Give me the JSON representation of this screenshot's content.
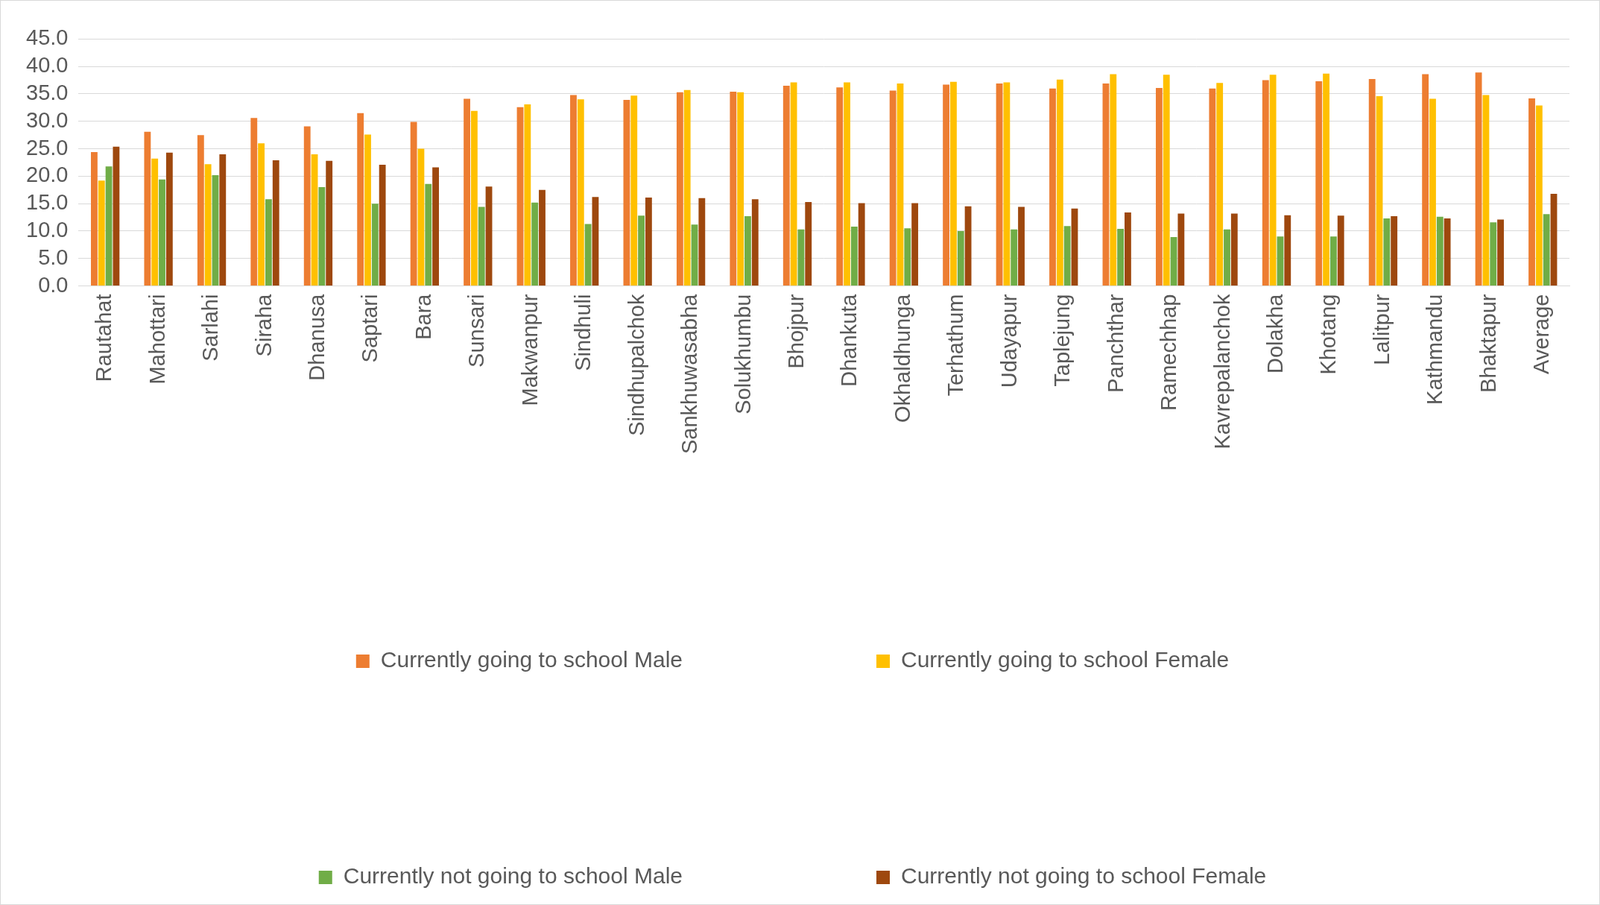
{
  "chart_data": {
    "type": "bar",
    "categories": [
      "Rautahat",
      "Mahottari",
      "Sarlahi",
      "Siraha",
      "Dhanusa",
      "Saptari",
      "Bara",
      "Sunsari",
      "Makwanpur",
      "Sindhuli",
      "Sindhupalchok",
      "Sankhuwasabha",
      "Solukhumbu",
      "Bhojpur",
      "Dhankuta",
      "Okhaldhunga",
      "Terhathum",
      "Udayapur",
      "Taplejung",
      "Panchthar",
      "Ramechhap",
      "Kavrepalanchok",
      "Dolakha",
      "Khotang",
      "Lalitpur",
      "Kathmandu",
      "Bhaktapur",
      "Average"
    ],
    "series": [
      {
        "name": "Currently going to school Male",
        "color": "#ED7D31",
        "values": [
          24.4,
          28.1,
          27.5,
          30.6,
          29.1,
          31.5,
          29.9,
          34.1,
          32.6,
          34.8,
          33.9,
          35.3,
          35.4,
          36.5,
          36.2,
          35.6,
          36.7,
          36.9,
          36.0,
          36.9,
          36.1,
          36.0,
          37.5,
          37.3,
          37.7,
          38.6,
          38.9,
          34.2
        ]
      },
      {
        "name": "Currently going to school Female",
        "color": "#FFC000",
        "values": [
          19.2,
          23.2,
          22.2,
          26.0,
          24.0,
          27.6,
          25.0,
          31.9,
          33.1,
          34.0,
          34.7,
          35.7,
          35.3,
          37.1,
          37.1,
          36.9,
          37.2,
          37.1,
          37.6,
          38.6,
          38.5,
          37.0,
          38.5,
          38.7,
          34.6,
          34.1,
          34.8,
          32.9
        ]
      },
      {
        "name": "Currently not going to school Male",
        "color": "#70AD47",
        "values": [
          21.8,
          19.4,
          20.2,
          15.8,
          18.0,
          15.0,
          18.6,
          14.4,
          15.2,
          11.3,
          12.8,
          11.2,
          12.7,
          10.3,
          10.8,
          10.5,
          10.0,
          10.3,
          10.9,
          10.4,
          8.9,
          10.3,
          9.0,
          9.0,
          12.3,
          12.6,
          11.6,
          13.1
        ]
      },
      {
        "name": "Currently not going to school Female",
        "color": "#9E480E",
        "values": [
          25.4,
          24.3,
          24.0,
          22.9,
          22.8,
          22.1,
          21.6,
          18.1,
          17.5,
          16.2,
          16.1,
          16.0,
          15.8,
          15.3,
          15.1,
          15.1,
          14.5,
          14.4,
          14.1,
          13.4,
          13.2,
          13.2,
          12.9,
          12.8,
          12.7,
          12.3,
          12.1,
          16.8
        ]
      }
    ],
    "ylim": [
      0,
      45
    ],
    "yticks": [
      {
        "value": 0,
        "label": "0.0"
      },
      {
        "value": 5,
        "label": "5.0"
      },
      {
        "value": 10,
        "label": "10.0"
      },
      {
        "value": 15,
        "label": "15.0"
      },
      {
        "value": 20,
        "label": "20.0"
      },
      {
        "value": 25,
        "label": "25.0"
      },
      {
        "value": 30,
        "label": "30.0"
      },
      {
        "value": 35,
        "label": "35.0"
      },
      {
        "value": 40,
        "label": "40.0"
      },
      {
        "value": 45,
        "label": "45.0"
      }
    ],
    "grid": true,
    "legend": "bottom"
  }
}
